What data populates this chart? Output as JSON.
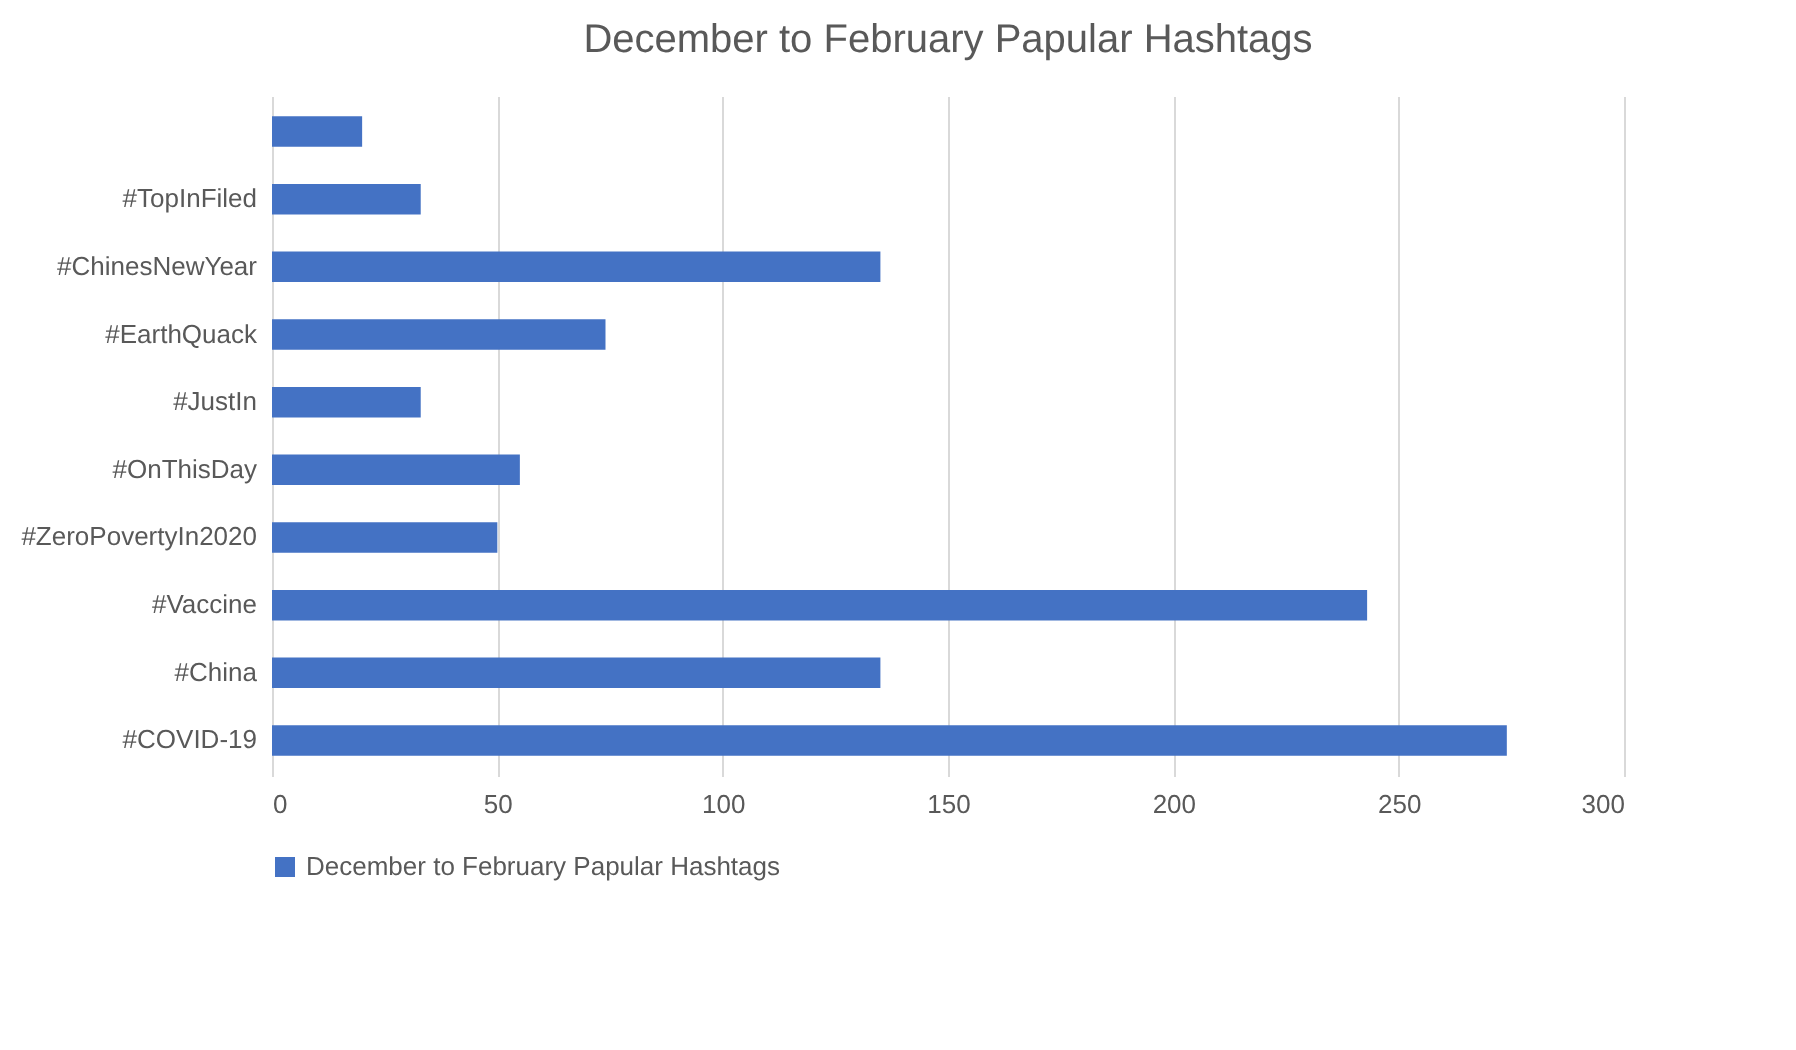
{
  "chart_data": {
    "type": "bar",
    "orientation": "horizontal",
    "title": "December to February Papular Hashtags",
    "categories": [
      null,
      "#TopInFiled",
      "#ChinesNewYear",
      "#EarthQuack",
      "#JustIn",
      "#OnThisDay",
      "#ZeroPovertyIn2020",
      "#Vaccine",
      "#China",
      "#COVID-19"
    ],
    "series": [
      {
        "name": "December to February Papular Hashtags",
        "color": "#4472c4",
        "values": [
          20,
          33,
          135,
          74,
          33,
          55,
          50,
          243,
          135,
          274
        ]
      }
    ],
    "xlim": [
      0,
      300
    ],
    "xticks": [
      0,
      50,
      100,
      150,
      200,
      250,
      300
    ],
    "grid": "x",
    "legend": "bottom"
  }
}
